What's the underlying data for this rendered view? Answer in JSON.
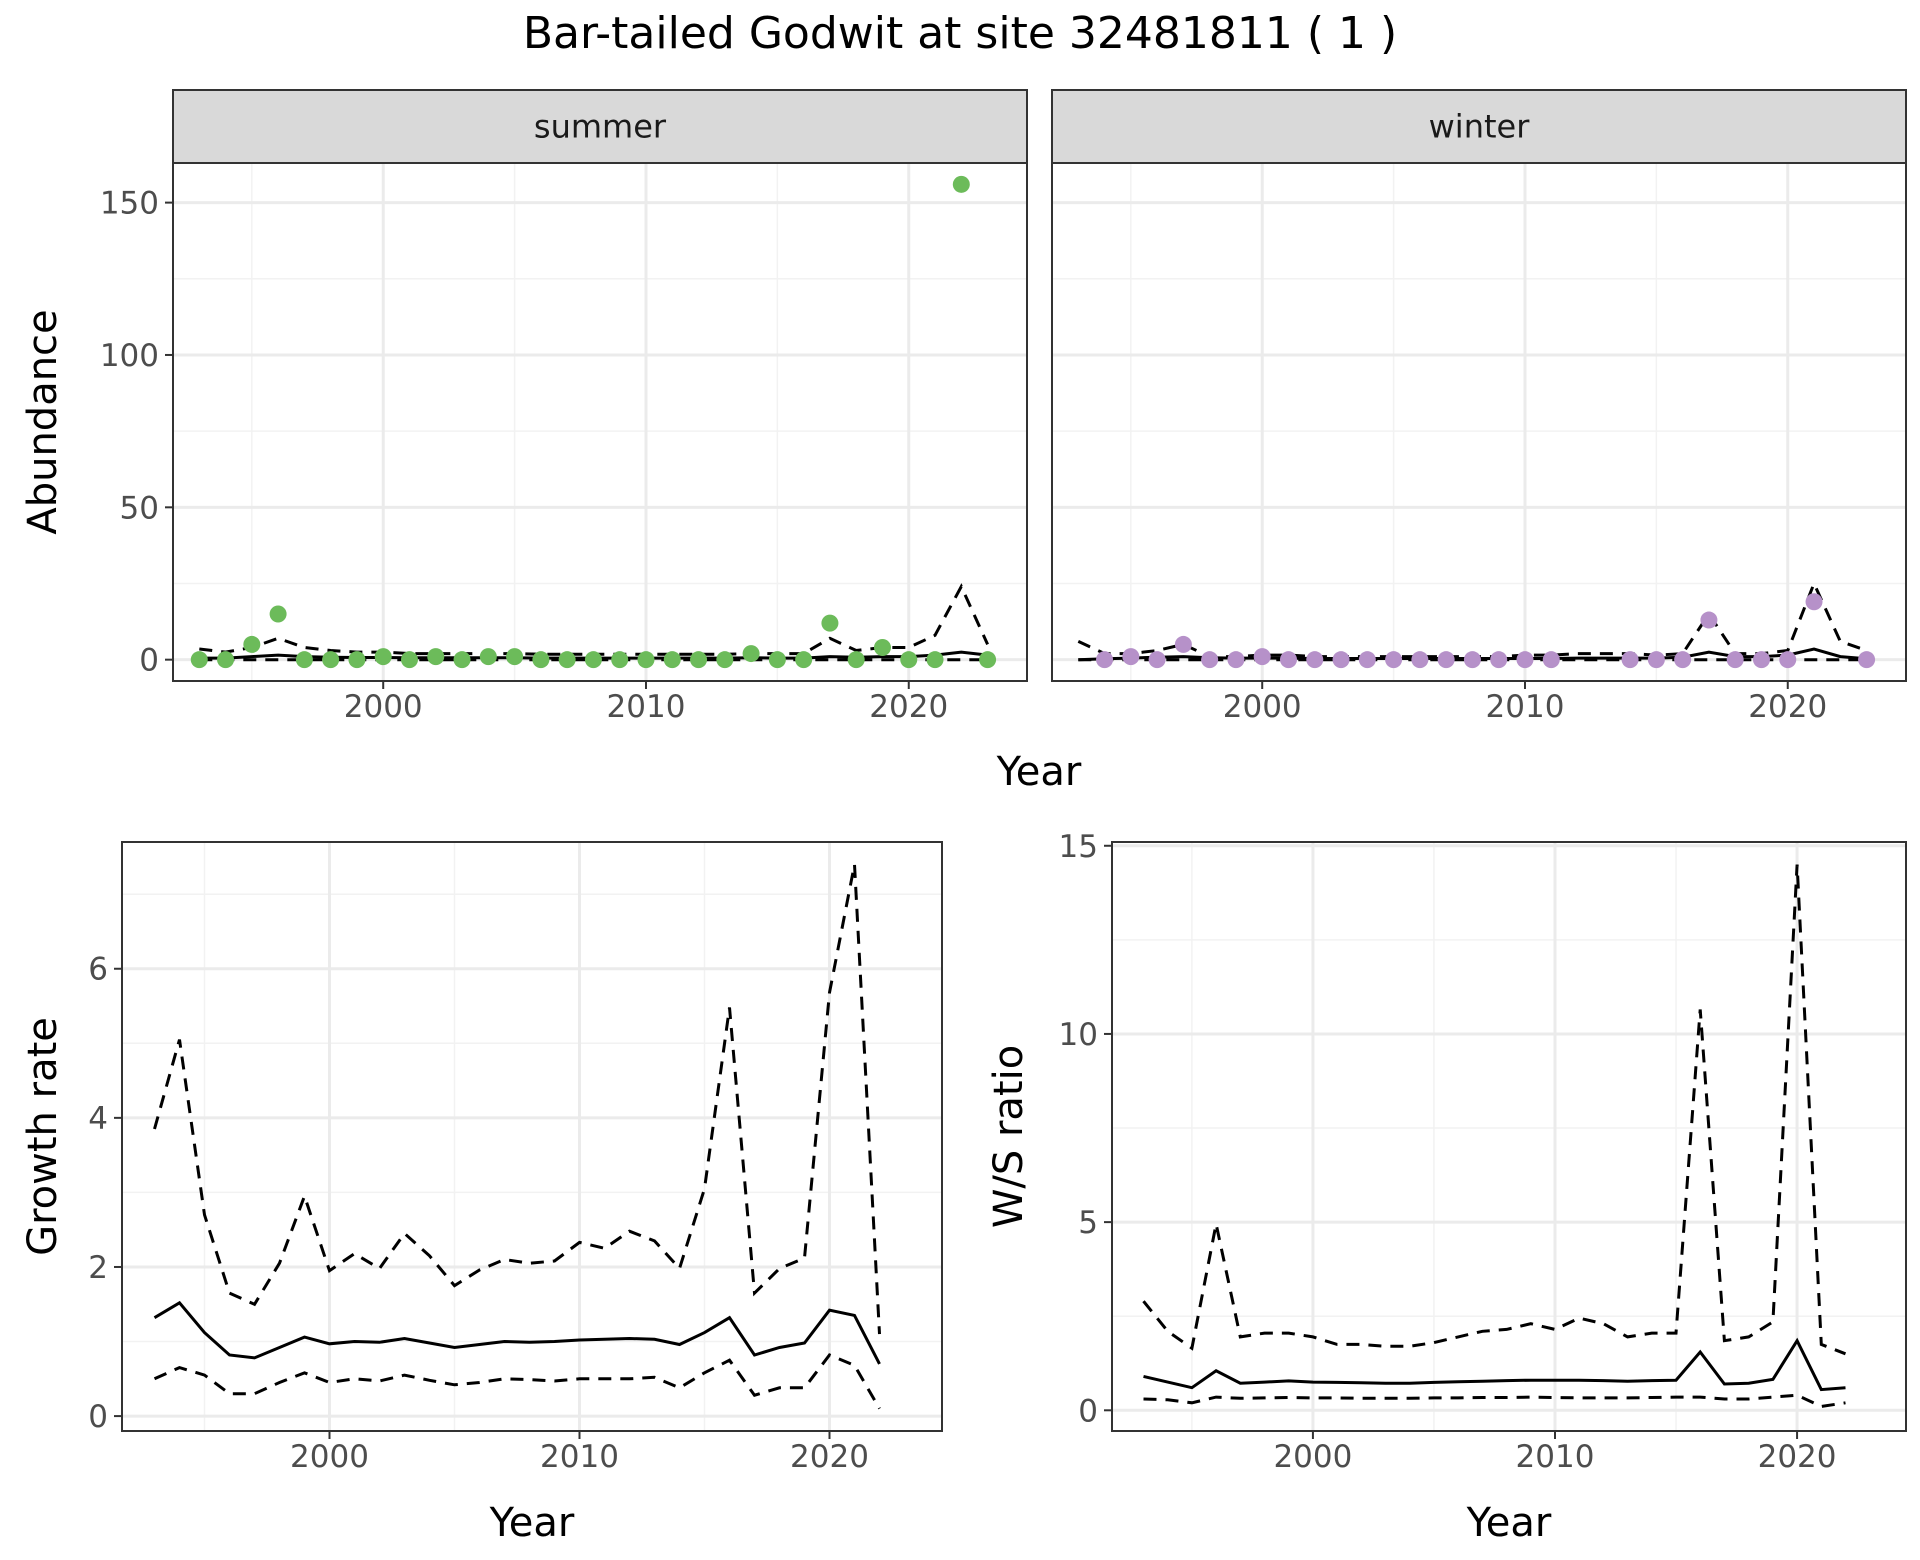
{
  "chart_data": {
    "title": "Bar-tailed Godwit at site 32481811 ( 1 )",
    "panels": [
      {
        "id": "abundance",
        "type": "scatter+line",
        "ylabel": "Abundance",
        "xlabel": "Year",
        "xlim": [
          1992,
          2024.5
        ],
        "ylim": [
          -7,
          163
        ],
        "xticks": [
          2000,
          2010,
          2020
        ],
        "yticks": [
          0,
          50,
          100,
          150
        ],
        "grid": true,
        "facets": [
          {
            "strip": "summer",
            "point_color": "#6cbb5a",
            "points": {
              "x": [
                1993,
                1994,
                1995,
                1996,
                1997,
                1998,
                1999,
                2000,
                2001,
                2002,
                2003,
                2004,
                2005,
                2006,
                2007,
                2008,
                2009,
                2010,
                2011,
                2012,
                2013,
                2014,
                2015,
                2016,
                2017,
                2018,
                2019,
                2020,
                2021,
                2022,
                2023
              ],
              "y": [
                0,
                0,
                5,
                15,
                0,
                0,
                0,
                1,
                0,
                1,
                0,
                1,
                1,
                0,
                0,
                0,
                0,
                0,
                0,
                0,
                0,
                2,
                0,
                0,
                12,
                0,
                4,
                0,
                0,
                156,
                0
              ]
            },
            "lines": {
              "x": [
                1993,
                1994,
                1995,
                1996,
                1997,
                1998,
                1999,
                2000,
                2001,
                2002,
                2003,
                2004,
                2005,
                2006,
                2007,
                2008,
                2009,
                2010,
                2011,
                2012,
                2013,
                2014,
                2015,
                2016,
                2017,
                2018,
                2019,
                2020,
                2021,
                2022,
                2023
              ],
              "mean": [
                0.5,
                0.5,
                1,
                1.5,
                1,
                0.8,
                0.7,
                0.7,
                0.6,
                0.6,
                0.6,
                0.6,
                0.6,
                0.5,
                0.5,
                0.5,
                0.5,
                0.5,
                0.5,
                0.5,
                0.5,
                0.6,
                0.5,
                0.5,
                1,
                0.8,
                1,
                1,
                1.5,
                2.5,
                1.5
              ],
              "lower": [
                0,
                0,
                0,
                0,
                0,
                0,
                0,
                0,
                0,
                0,
                0,
                0,
                0,
                0,
                0,
                0,
                0,
                0,
                0,
                0,
                0,
                0,
                0,
                0,
                0,
                0,
                0,
                0,
                0,
                0,
                0
              ],
              "upper": [
                3.5,
                2.5,
                4,
                7,
                4,
                3,
                2.5,
                2.5,
                2,
                2,
                2,
                2,
                2,
                1.8,
                1.8,
                1.8,
                1.8,
                1.8,
                1.8,
                1.8,
                1.8,
                2,
                2,
                2,
                7,
                3,
                4,
                4,
                8,
                24,
                5
              ]
            }
          },
          {
            "strip": "winter",
            "point_color": "#b691c9",
            "points": {
              "x": [
                1994,
                1995,
                1996,
                1997,
                1998,
                1999,
                2000,
                2001,
                2002,
                2003,
                2004,
                2005,
                2006,
                2007,
                2008,
                2009,
                2010,
                2011,
                2014,
                2015,
                2016,
                2017,
                2018,
                2019,
                2020,
                2021,
                2023
              ],
              "y": [
                0,
                1,
                0,
                5,
                0,
                0,
                1,
                0,
                0,
                0,
                0,
                0,
                0,
                0,
                0,
                0,
                0,
                0,
                0,
                0,
                0,
                13,
                0,
                0,
                0,
                19,
                0
              ]
            },
            "lines": {
              "x": [
                1993,
                1994,
                1995,
                1996,
                1997,
                1998,
                1999,
                2000,
                2001,
                2002,
                2003,
                2004,
                2005,
                2006,
                2007,
                2008,
                2009,
                2010,
                2011,
                2012,
                2013,
                2014,
                2015,
                2016,
                2017,
                2018,
                2019,
                2020,
                2021,
                2022,
                2023
              ],
              "mean": [
                0,
                0.3,
                0.5,
                0.8,
                1,
                0.6,
                0.5,
                0.5,
                0.5,
                0.4,
                0.4,
                0.4,
                0.4,
                0.4,
                0.4,
                0.4,
                0.4,
                0.4,
                0.4,
                0.5,
                0.5,
                0.5,
                0.5,
                0.8,
                2.5,
                1,
                1,
                1.5,
                3.5,
                1,
                0.3
              ],
              "lower": [
                0,
                0,
                0,
                0,
                0,
                0,
                0,
                0,
                0,
                0,
                0,
                0,
                0,
                0,
                0,
                0,
                0,
                0,
                0,
                0,
                0,
                0,
                0,
                0,
                0,
                0,
                0,
                0,
                0,
                0,
                0
              ],
              "upper": [
                6,
                2,
                2,
                3,
                5,
                1,
                1,
                1.5,
                1.5,
                1,
                1,
                1,
                1,
                1,
                1,
                1,
                1,
                1.5,
                1.5,
                2,
                2,
                2,
                1.5,
                2,
                15,
                2,
                2,
                3,
                25,
                6,
                3
              ]
            }
          }
        ]
      },
      {
        "id": "growth",
        "type": "line",
        "ylabel": "Growth rate",
        "xlabel": "Year",
        "xlim": [
          1991.7,
          2024.5
        ],
        "ylim": [
          -0.2,
          7.7
        ],
        "xticks": [
          2000,
          2010,
          2020
        ],
        "yticks": [
          0,
          2,
          4,
          6
        ],
        "grid": true,
        "x": [
          1993,
          1994,
          1995,
          1996,
          1997,
          1998,
          1999,
          2000,
          2001,
          2002,
          2003,
          2004,
          2005,
          2006,
          2007,
          2008,
          2009,
          2010,
          2011,
          2012,
          2013,
          2014,
          2015,
          2016,
          2017,
          2018,
          2019,
          2020,
          2021,
          2022
        ],
        "mean": [
          1.32,
          1.52,
          1.12,
          0.82,
          0.78,
          0.92,
          1.06,
          0.97,
          1.0,
          0.99,
          1.04,
          0.98,
          0.92,
          0.96,
          1.0,
          0.99,
          1.0,
          1.02,
          1.03,
          1.04,
          1.03,
          0.96,
          1.12,
          1.32,
          0.82,
          0.92,
          0.98,
          1.42,
          1.35,
          0.7
        ],
        "lower": [
          0.5,
          0.65,
          0.55,
          0.3,
          0.3,
          0.45,
          0.58,
          0.45,
          0.5,
          0.47,
          0.55,
          0.48,
          0.42,
          0.45,
          0.5,
          0.49,
          0.47,
          0.5,
          0.5,
          0.5,
          0.52,
          0.38,
          0.58,
          0.75,
          0.28,
          0.38,
          0.38,
          0.82,
          0.68,
          0.1
        ],
        "upper": [
          3.85,
          5.05,
          2.7,
          1.65,
          1.5,
          2.05,
          2.95,
          1.95,
          2.18,
          1.98,
          2.45,
          2.15,
          1.75,
          1.96,
          2.1,
          2.05,
          2.08,
          2.33,
          2.25,
          2.48,
          2.35,
          1.98,
          3.05,
          5.48,
          1.65,
          1.98,
          2.12,
          5.68,
          7.4,
          1.1
        ]
      },
      {
        "id": "ws_ratio",
        "type": "line",
        "ylabel": "W/S ratio",
        "xlabel": "Year",
        "xlim": [
          1991.7,
          2024.5
        ],
        "ylim": [
          -0.55,
          15.1
        ],
        "xticks": [
          2000,
          2010,
          2020
        ],
        "yticks": [
          0,
          5,
          10,
          15
        ],
        "grid": true,
        "x": [
          1993,
          1994,
          1995,
          1996,
          1997,
          1998,
          1999,
          2000,
          2001,
          2002,
          2003,
          2004,
          2005,
          2006,
          2007,
          2008,
          2009,
          2010,
          2011,
          2012,
          2013,
          2014,
          2015,
          2016,
          2017,
          2018,
          2019,
          2020,
          2021,
          2022
        ],
        "mean": [
          0.9,
          0.75,
          0.6,
          1.05,
          0.72,
          0.75,
          0.78,
          0.75,
          0.74,
          0.73,
          0.72,
          0.72,
          0.74,
          0.76,
          0.77,
          0.79,
          0.8,
          0.8,
          0.8,
          0.79,
          0.77,
          0.79,
          0.8,
          1.55,
          0.7,
          0.72,
          0.82,
          1.85,
          0.55,
          0.6
        ],
        "lower": [
          0.3,
          0.28,
          0.2,
          0.35,
          0.32,
          0.33,
          0.34,
          0.33,
          0.33,
          0.32,
          0.32,
          0.32,
          0.33,
          0.33,
          0.34,
          0.34,
          0.35,
          0.34,
          0.33,
          0.33,
          0.33,
          0.34,
          0.35,
          0.35,
          0.3,
          0.3,
          0.35,
          0.4,
          0.1,
          0.2
        ],
        "upper": [
          2.9,
          2.1,
          1.65,
          4.95,
          1.95,
          2.05,
          2.05,
          1.95,
          1.75,
          1.75,
          1.7,
          1.7,
          1.8,
          1.95,
          2.1,
          2.15,
          2.3,
          2.15,
          2.45,
          2.3,
          1.95,
          2.05,
          2.05,
          10.65,
          1.85,
          1.95,
          2.35,
          14.5,
          1.75,
          1.5
        ]
      }
    ]
  }
}
